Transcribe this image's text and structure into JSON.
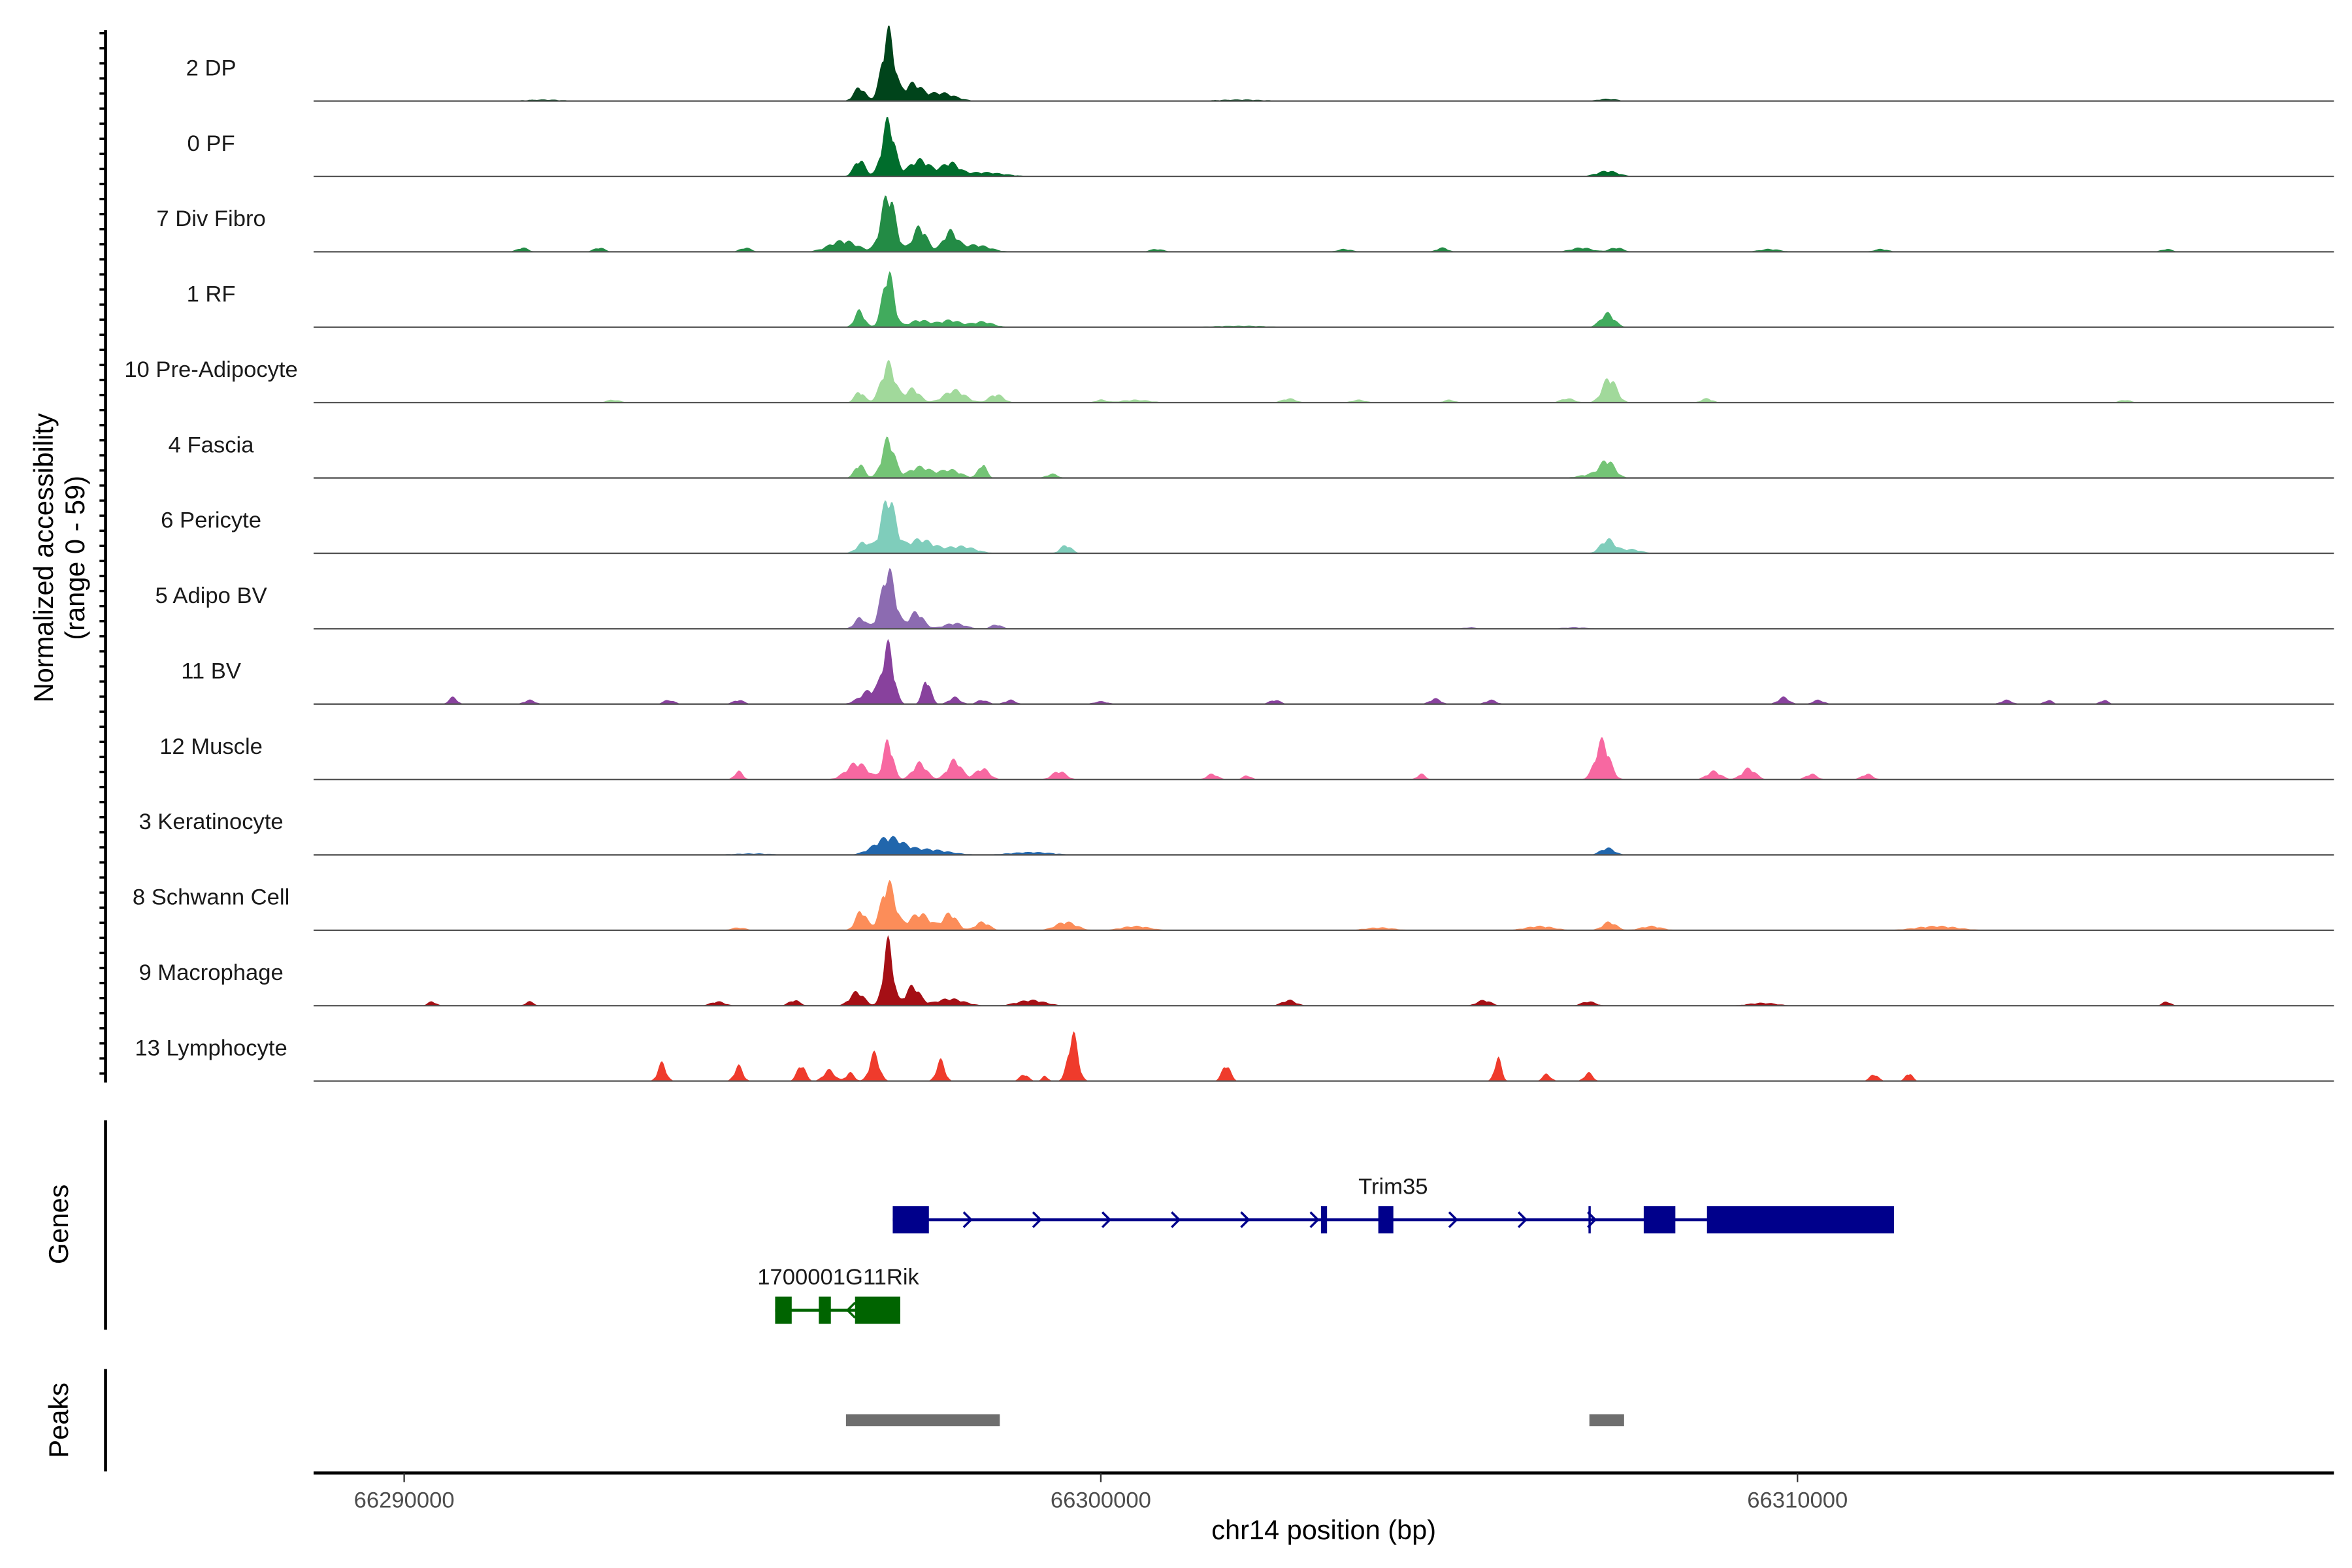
{
  "chart_data": {
    "type": "area",
    "title": "",
    "xlabel": "chr14 position (bp)",
    "ylabel": "Normalized accessibility",
    "ylabel_sub": "(range 0 - 59)",
    "ylim": [
      0,
      59
    ],
    "xlim": [
      66288700,
      66317700
    ],
    "xticks": [
      66290000,
      66300000,
      66310000
    ],
    "xtick_labels": [
      "66290000",
      "66300000",
      "66310000"
    ],
    "tracks": [
      {
        "label": "2 DP",
        "color": "#00441b",
        "peaks": [
          [
            66296537,
            10,
            80
          ],
          [
            66296948,
            50,
            90
          ],
          [
            66297300,
            12,
            120
          ],
          [
            66297700,
            6,
            200
          ],
          [
            66292000,
            1,
            300
          ],
          [
            66307273,
            1.5,
            150
          ],
          [
            66302000,
            1,
            400
          ]
        ]
      },
      {
        "label": "0 PF",
        "color": "#006d2c",
        "peaks": [
          [
            66296537,
            12,
            80
          ],
          [
            66296948,
            40,
            90
          ],
          [
            66297400,
            12,
            150
          ],
          [
            66297835,
            9,
            120
          ],
          [
            66298300,
            3,
            300
          ],
          [
            66307273,
            4,
            150
          ]
        ]
      },
      {
        "label": "7 Div Fibro",
        "color": "#238b45",
        "peaks": [
          [
            66296300,
            8,
            200
          ],
          [
            66296948,
            42,
            100
          ],
          [
            66297400,
            18,
            100
          ],
          [
            66297835,
            14,
            100
          ],
          [
            66298200,
            5,
            200
          ],
          [
            66291700,
            3,
            80
          ],
          [
            66292800,
            3,
            80
          ],
          [
            66294900,
            3,
            80
          ],
          [
            66300800,
            2,
            100
          ],
          [
            66303500,
            2,
            100
          ],
          [
            66304900,
            3,
            80
          ],
          [
            66306900,
            3,
            150
          ],
          [
            66307400,
            3,
            100
          ],
          [
            66309600,
            2,
            150
          ],
          [
            66311200,
            2,
            100
          ],
          [
            66315300,
            2,
            80
          ]
        ]
      },
      {
        "label": "1 RF",
        "color": "#41ab5d",
        "peaks": [
          [
            66296537,
            12,
            70
          ],
          [
            66296948,
            40,
            80
          ],
          [
            66297400,
            5,
            150
          ],
          [
            66297835,
            5,
            150
          ],
          [
            66298300,
            4,
            150
          ],
          [
            66302000,
            1,
            400
          ],
          [
            66307273,
            10,
            100
          ]
        ]
      },
      {
        "label": "10 Pre-Adipocyte",
        "color": "#a1d99b",
        "peaks": [
          [
            66296537,
            8,
            70
          ],
          [
            66296948,
            28,
            100
          ],
          [
            66297300,
            10,
            100
          ],
          [
            66297900,
            9,
            150
          ],
          [
            66298500,
            6,
            100
          ],
          [
            66293000,
            2,
            100
          ],
          [
            66300500,
            2,
            200
          ],
          [
            66302700,
            3,
            100
          ],
          [
            66303700,
            2,
            100
          ],
          [
            66307300,
            18,
            100
          ],
          [
            66306700,
            3,
            100
          ],
          [
            66308700,
            3,
            80
          ],
          [
            66314700,
            2,
            80
          ],
          [
            66300000,
            2,
            80
          ],
          [
            66305000,
            2,
            80
          ]
        ]
      },
      {
        "label": "4 Fascia",
        "color": "#74c476",
        "peaks": [
          [
            66296537,
            10,
            70
          ],
          [
            66296948,
            28,
            90
          ],
          [
            66297400,
            8,
            150
          ],
          [
            66297835,
            6,
            150
          ],
          [
            66298300,
            10,
            60
          ],
          [
            66299300,
            3,
            80
          ],
          [
            66307273,
            11,
            100
          ],
          [
            66307100,
            3,
            200
          ]
        ]
      },
      {
        "label": "6 Pericyte",
        "color": "#7fcdbb",
        "peaks": [
          [
            66296600,
            8,
            100
          ],
          [
            66296948,
            40,
            100
          ],
          [
            66297400,
            10,
            200
          ],
          [
            66298000,
            5,
            200
          ],
          [
            66299500,
            6,
            80
          ],
          [
            66307273,
            10,
            100
          ],
          [
            66307600,
            3,
            150
          ]
        ]
      },
      {
        "label": "5 Adipo BV",
        "color": "#8c6bb1",
        "peaks": [
          [
            66296548,
            8,
            80
          ],
          [
            66296948,
            42,
            100
          ],
          [
            66297350,
            12,
            100
          ],
          [
            66297900,
            4,
            150
          ],
          [
            66298500,
            3,
            80
          ],
          [
            66305300,
            1,
            100
          ],
          [
            66306800,
            1,
            200
          ]
        ]
      },
      {
        "label": "11 BV",
        "color": "#88419d",
        "peaks": [
          [
            66296700,
            10,
            150
          ],
          [
            66296948,
            40,
            80
          ],
          [
            66297500,
            18,
            60
          ],
          [
            66297900,
            5,
            80
          ],
          [
            66298300,
            3,
            80
          ],
          [
            66298700,
            3,
            80
          ],
          [
            66300000,
            2,
            100
          ],
          [
            66290700,
            5,
            60
          ],
          [
            66291800,
            3,
            80
          ],
          [
            66293800,
            3,
            80
          ],
          [
            66294800,
            3,
            80
          ],
          [
            66302500,
            3,
            80
          ],
          [
            66304800,
            4,
            80
          ],
          [
            66305600,
            3,
            80
          ],
          [
            66309800,
            5,
            80
          ],
          [
            66310300,
            3,
            80
          ],
          [
            66313000,
            3,
            80
          ],
          [
            66313600,
            3,
            60
          ],
          [
            66314400,
            3,
            60
          ]
        ]
      },
      {
        "label": "12 Muscle",
        "color": "#f768a1",
        "peaks": [
          [
            66296500,
            12,
            150
          ],
          [
            66296948,
            28,
            70
          ],
          [
            66297400,
            12,
            100
          ],
          [
            66297900,
            14,
            100
          ],
          [
            66298300,
            8,
            100
          ],
          [
            66294800,
            6,
            60
          ],
          [
            66299400,
            6,
            100
          ],
          [
            66301600,
            4,
            80
          ],
          [
            66302100,
            3,
            60
          ],
          [
            66304600,
            4,
            60
          ],
          [
            66307200,
            28,
            100
          ],
          [
            66308800,
            6,
            100
          ],
          [
            66309300,
            8,
            100
          ],
          [
            66310200,
            4,
            80
          ],
          [
            66311000,
            4,
            80
          ]
        ]
      },
      {
        "label": "3 Keratinocyte",
        "color": "#2166ac",
        "peaks": [
          [
            66296948,
            12,
            200
          ],
          [
            66297500,
            4,
            300
          ],
          [
            66307273,
            5,
            100
          ],
          [
            66295000,
            1,
            300
          ],
          [
            66299000,
            2,
            300
          ]
        ]
      },
      {
        "label": "8 Schwann Cell",
        "color": "#fc8d59",
        "peaks": [
          [
            66296560,
            14,
            80
          ],
          [
            66296948,
            34,
            100
          ],
          [
            66297400,
            12,
            150
          ],
          [
            66297835,
            12,
            100
          ],
          [
            66298300,
            6,
            100
          ],
          [
            66299500,
            6,
            150
          ],
          [
            66294800,
            2,
            100
          ],
          [
            66300500,
            3,
            200
          ],
          [
            66306300,
            3,
            200
          ],
          [
            66307300,
            6,
            100
          ],
          [
            66307900,
            3,
            150
          ],
          [
            66312000,
            3,
            300
          ],
          [
            66304000,
            2,
            200
          ]
        ]
      },
      {
        "label": "9 Macrophage",
        "color": "#a50f15",
        "peaks": [
          [
            66296500,
            10,
            100
          ],
          [
            66296948,
            46,
            70
          ],
          [
            66297300,
            14,
            100
          ],
          [
            66297835,
            5,
            200
          ],
          [
            66299000,
            4,
            200
          ],
          [
            66290400,
            3,
            60
          ],
          [
            66291800,
            3,
            60
          ],
          [
            66294500,
            3,
            100
          ],
          [
            66295600,
            4,
            80
          ],
          [
            66302700,
            4,
            100
          ],
          [
            66305500,
            4,
            100
          ],
          [
            66307000,
            3,
            100
          ],
          [
            66309500,
            2,
            200
          ],
          [
            66315300,
            3,
            60
          ]
        ]
      },
      {
        "label": "13 Lymphocyte",
        "color": "#ef3b2c",
        "peaks": [
          [
            66293700,
            13,
            60
          ],
          [
            66294800,
            11,
            60
          ],
          [
            66295700,
            12,
            60
          ],
          [
            66296100,
            8,
            80
          ],
          [
            66296750,
            20,
            70
          ],
          [
            66297700,
            15,
            60
          ],
          [
            66299600,
            34,
            70
          ],
          [
            66298900,
            5,
            60
          ],
          [
            66301800,
            12,
            60
          ],
          [
            66305700,
            17,
            50
          ],
          [
            66306400,
            5,
            60
          ],
          [
            66307000,
            6,
            60
          ],
          [
            66311100,
            5,
            60
          ],
          [
            66311600,
            6,
            50
          ],
          [
            66296400,
            6,
            60
          ],
          [
            66299200,
            4,
            40
          ]
        ]
      }
    ],
    "genes_label": "Genes",
    "genes": [
      {
        "name": "Trim35",
        "strand": "+",
        "color": "#00008b",
        "start": 66297013,
        "end": 66311385,
        "exons": [
          [
            66297013,
            66297532
          ],
          [
            66303160,
            66303247
          ],
          [
            66303983,
            66304199
          ],
          [
            66307000,
            66307030
          ],
          [
            66307793,
            66308247
          ],
          [
            66308701,
            66311385
          ]
        ]
      },
      {
        "name": "1700001G11Rik",
        "strand": "-",
        "color": "#006400",
        "start": 66295325,
        "end": 66297121,
        "exons": [
          [
            66295325,
            66295563
          ],
          [
            66295952,
            66296125
          ],
          [
            66296472,
            66297121
          ]
        ]
      }
    ],
    "peaks_label": "Peaks",
    "peak_color": "#6e6e6e",
    "peaks": [
      [
        66296342,
        66298550
      ],
      [
        66307013,
        66307511
      ]
    ]
  }
}
